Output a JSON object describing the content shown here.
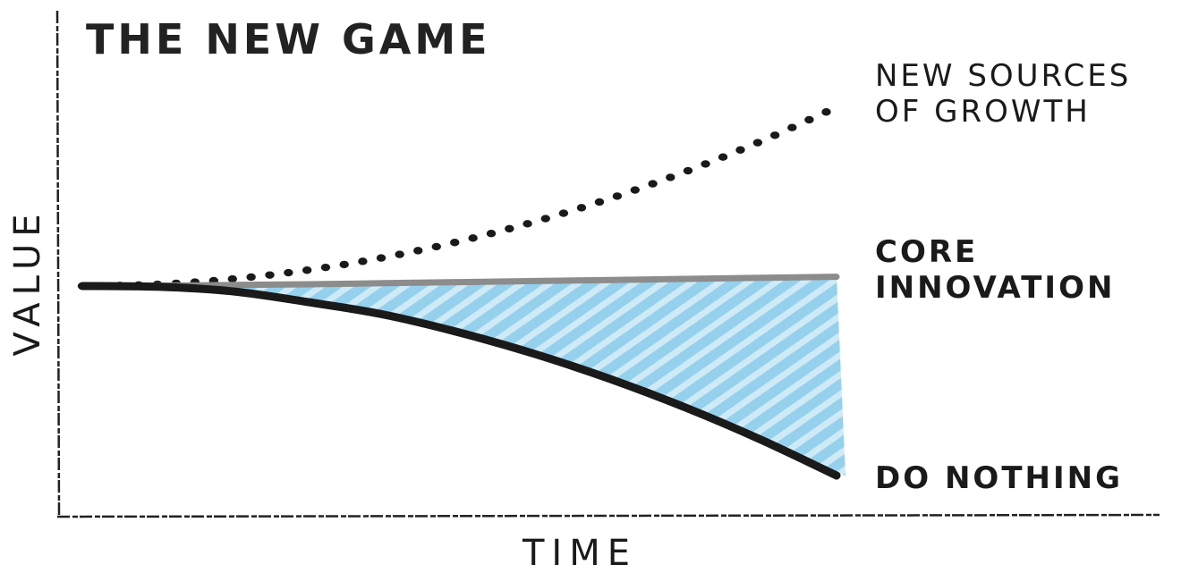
{
  "chart_data": {
    "type": "line",
    "title": "THE NEW GAME",
    "xlabel": "TIME",
    "ylabel": "VALUE",
    "grid": false,
    "x": [
      0,
      0.1,
      0.2,
      0.3,
      0.4,
      0.5,
      0.6,
      0.7,
      0.8,
      0.9,
      1.0
    ],
    "series": [
      {
        "name": "NEW SOURCES OF GROWTH",
        "style": "dotted",
        "color": "#1a1a1a",
        "values": [
          0,
          0.005,
          0.02,
          0.045,
          0.08,
          0.125,
          0.18,
          0.245,
          0.32,
          0.405,
          0.5
        ]
      },
      {
        "name": "CORE INNOVATION",
        "style": "solid",
        "color": "#8c8c8c",
        "values": [
          0,
          0.001,
          0.003,
          0.005,
          0.008,
          0.011,
          0.014,
          0.017,
          0.02,
          0.023,
          0.026
        ]
      },
      {
        "name": "DO NOTHING",
        "style": "solid",
        "color": "#1a1a1a",
        "values": [
          0,
          -0.002,
          -0.015,
          -0.045,
          -0.08,
          -0.13,
          -0.19,
          -0.26,
          -0.34,
          -0.43,
          -0.53
        ]
      }
    ],
    "fill_between": {
      "upper": "CORE INNOVATION",
      "lower": "DO NOTHING",
      "color": "#a9d8ef"
    },
    "label_lines": {
      "growth": [
        "NEW SOURCES",
        "OF GROWTH"
      ],
      "core": [
        "CORE",
        "INNOVATION"
      ],
      "nothing": [
        "DO NOTHING"
      ]
    }
  }
}
